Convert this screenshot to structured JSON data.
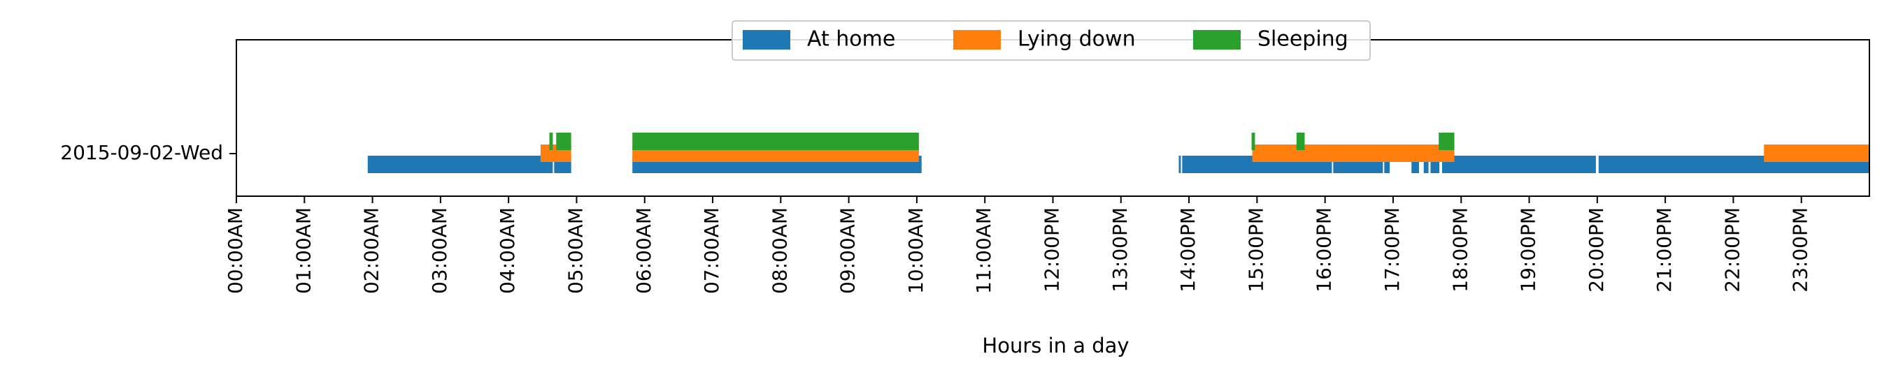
{
  "chart_data": {
    "type": "timeline",
    "xlabel": "Hours in a day",
    "category": "2015-09-02-Wed",
    "xlim": [
      0,
      24
    ],
    "tick_labels": [
      "00:00AM",
      "01:00AM",
      "02:00AM",
      "03:00AM",
      "04:00AM",
      "05:00AM",
      "06:00AM",
      "07:00AM",
      "08:00AM",
      "09:00AM",
      "10:00AM",
      "11:00AM",
      "12:00PM",
      "13:00PM",
      "14:00PM",
      "15:00PM",
      "16:00PM",
      "17:00PM",
      "18:00PM",
      "19:00PM",
      "20:00PM",
      "21:00PM",
      "22:00PM",
      "23:00PM"
    ],
    "legend_position": "top-center",
    "series": [
      {
        "name": "At home",
        "color": "#1f77b4",
        "intervals": [
          [
            1.93,
            4.65
          ],
          [
            4.67,
            4.92
          ],
          [
            5.82,
            10.07
          ],
          [
            13.85,
            13.88
          ],
          [
            13.9,
            16.1
          ],
          [
            16.12,
            16.85
          ],
          [
            16.87,
            16.95
          ],
          [
            17.27,
            17.38
          ],
          [
            17.45,
            17.52
          ],
          [
            17.55,
            17.68
          ],
          [
            17.72,
            19.98
          ],
          [
            20.02,
            24.0
          ]
        ]
      },
      {
        "name": "Lying down",
        "color": "#ff7f0e",
        "intervals": [
          [
            4.47,
            4.92
          ],
          [
            5.82,
            10.03
          ],
          [
            14.93,
            17.9
          ],
          [
            22.45,
            24.0
          ]
        ]
      },
      {
        "name": "Sleeping",
        "color": "#2ca02c",
        "intervals": [
          [
            4.6,
            4.65
          ],
          [
            4.7,
            4.92
          ],
          [
            5.82,
            10.03
          ],
          [
            14.92,
            14.97
          ],
          [
            15.58,
            15.7
          ],
          [
            17.67,
            17.9
          ]
        ]
      }
    ]
  }
}
